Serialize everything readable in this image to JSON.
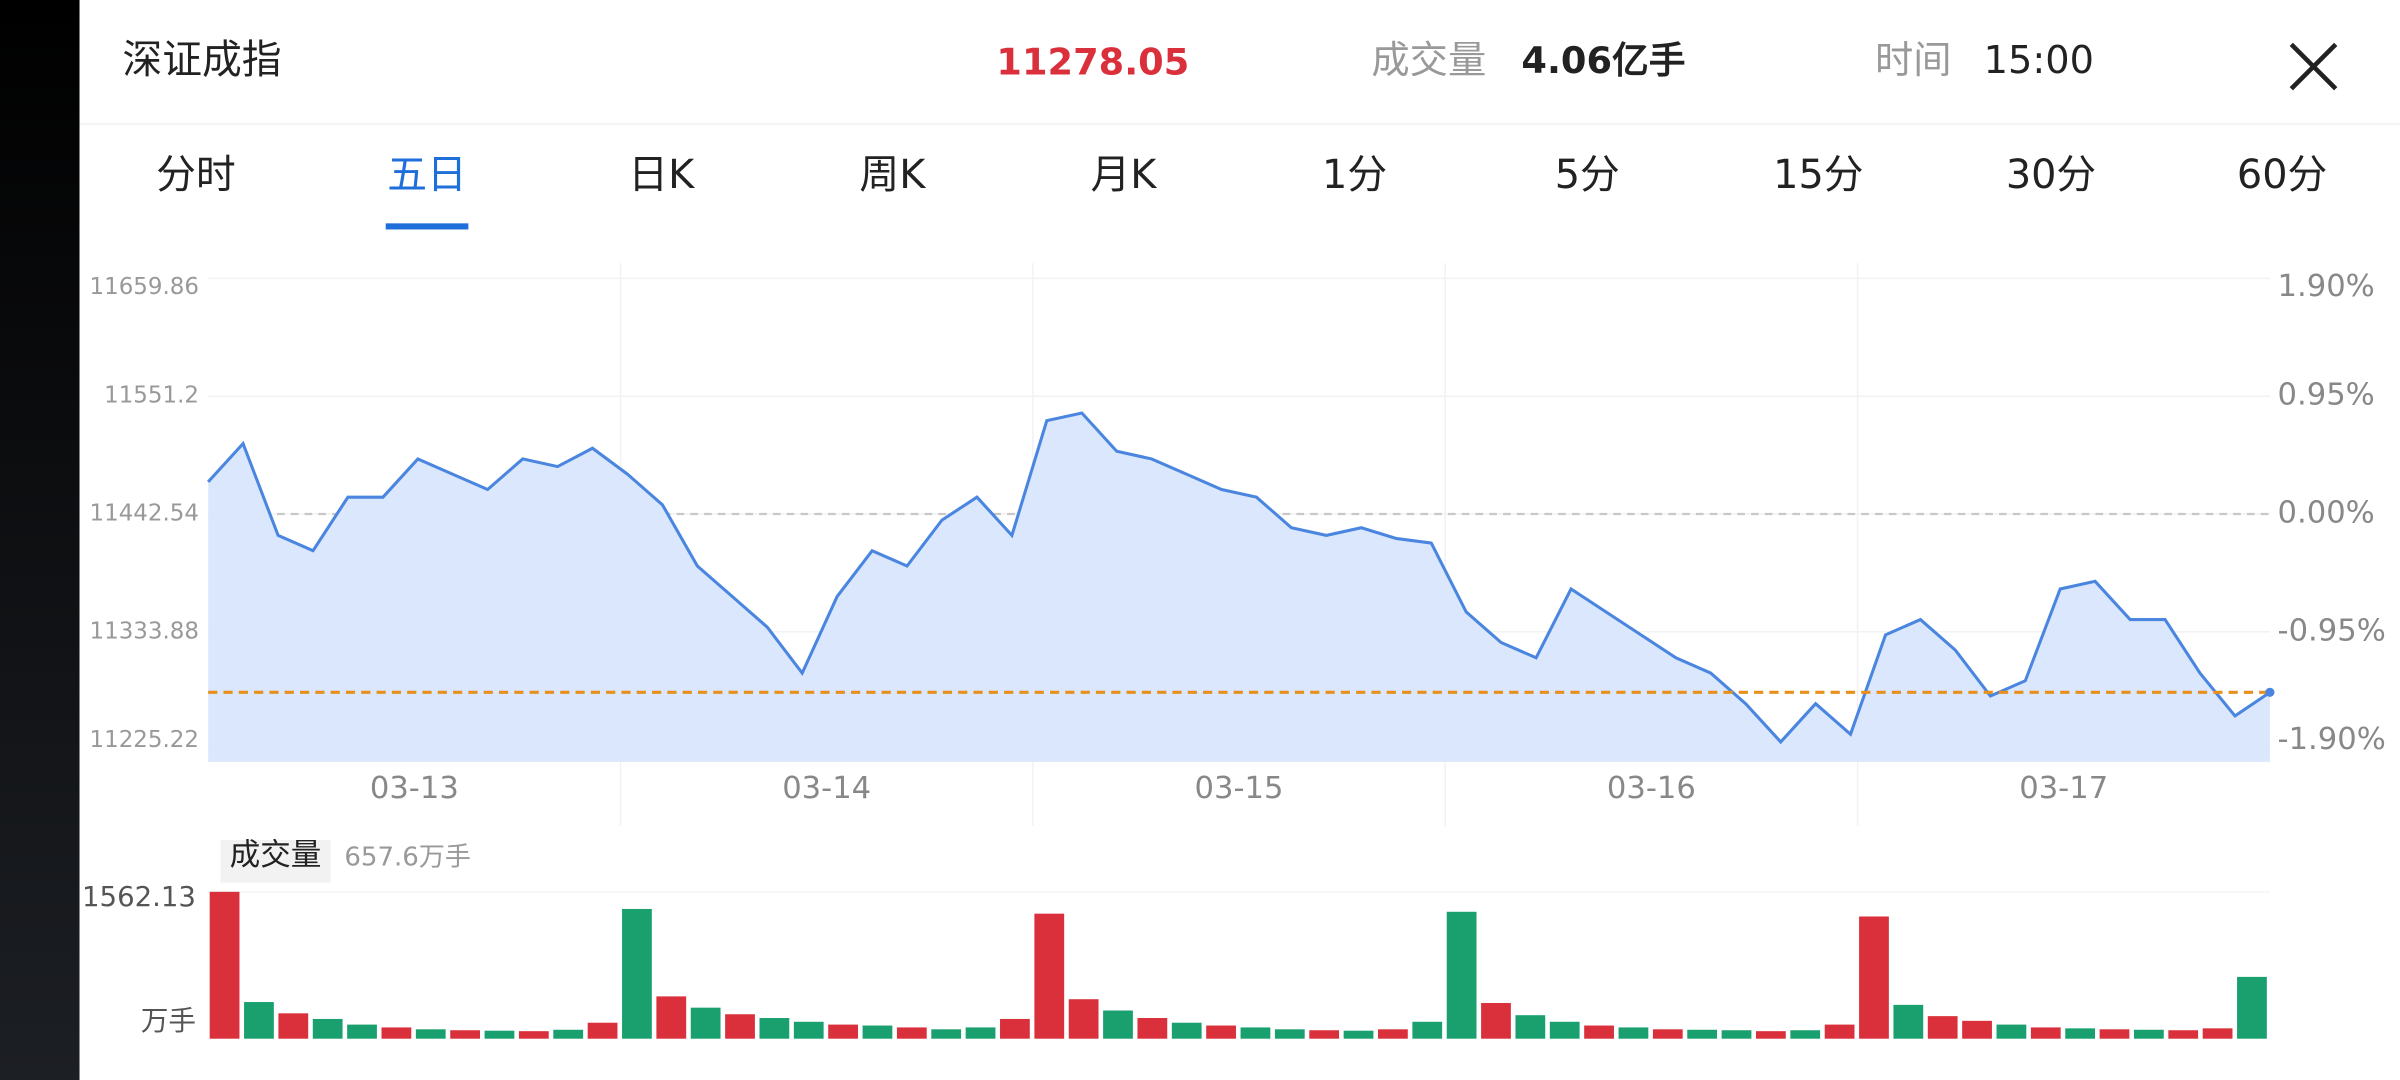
{
  "header": {
    "title": "深证成指",
    "price": "11278.05",
    "volume_label": "成交量",
    "volume": "4.06亿手",
    "time_label": "时间",
    "time": "15:00"
  },
  "tabs": {
    "items": [
      "分时",
      "五日",
      "日K",
      "周K",
      "月K",
      "1分",
      "5分",
      "15分",
      "30分",
      "60分"
    ],
    "active": 1
  },
  "chart_data": [
    {
      "type": "line",
      "days": [
        "03-13",
        "03-14",
        "03-15",
        "03-16",
        "03-17"
      ],
      "values": [
        11472.2,
        11507.5,
        11422.8,
        11408.7,
        11458.1,
        11458.1,
        11493.3,
        11479.2,
        11465.1,
        11493.3,
        11486.3,
        11503.2,
        11479.2,
        11451.0,
        11394.6,
        11366.3,
        11338.1,
        11295.8,
        11366.3,
        11408.7,
        11394.6,
        11436.9,
        11458.1,
        11422.8,
        11528.6,
        11535.7,
        11500.4,
        11493.3,
        11479.2,
        11465.1,
        11458.1,
        11429.8,
        11422.8,
        11429.8,
        11420.0,
        11415.7,
        11352.2,
        11324.0,
        11309.9,
        11373.4,
        11352.2,
        11331.0,
        11309.9,
        11295.8,
        11267.5,
        11232.3,
        11267.5,
        11239.3,
        11331.0,
        11345.2,
        11316.9,
        11274.6,
        11288.7,
        11373.4,
        11380.4,
        11345.2,
        11345.2,
        11295.8,
        11256.2,
        11278.05
      ],
      "color": "#4a86e0",
      "fill": "#dbe7fc",
      "ylim": [
        11225.22,
        11659.86
      ],
      "yticks": [
        11659.86,
        11551.2,
        11442.54,
        11333.88,
        11225.22
      ],
      "y2lim": [
        -1.9,
        1.9
      ],
      "y2ticks": [
        {
          "value": 1.9,
          "label": "1.90%"
        },
        {
          "value": 0.95,
          "label": "0.95%"
        },
        {
          "value": 0,
          "label": "0.00%"
        },
        {
          "value": -0.95,
          "label": "-0.95%"
        },
        {
          "value": -1.9,
          "label": "-1.90%"
        }
      ],
      "reference_line": {
        "value": 11278.05,
        "color": "#e8901c"
      },
      "grid": true
    },
    {
      "type": "bar",
      "title": "成交量",
      "current": "657.6万手",
      "unit": "万手",
      "values": [
        1562.13,
        390,
        270,
        210,
        150,
        120,
        100,
        90,
        85,
        80,
        95,
        170,
        1380,
        450,
        330,
        260,
        220,
        180,
        150,
        140,
        120,
        100,
        120,
        210,
        1330,
        420,
        300,
        220,
        170,
        140,
        120,
        100,
        90,
        85,
        100,
        180,
        1350,
        380,
        250,
        180,
        140,
        120,
        100,
        95,
        90,
        80,
        90,
        150,
        1300,
        360,
        240,
        190,
        150,
        120,
        110,
        100,
        95,
        90,
        110,
        657.6
      ],
      "colors": [
        "#d9303c",
        "#19a06e",
        "#d9303c",
        "#19a06e",
        "#19a06e",
        "#d9303c",
        "#19a06e",
        "#d9303c",
        "#19a06e",
        "#d9303c",
        "#19a06e",
        "#d9303c",
        "#19a06e",
        "#d9303c",
        "#19a06e",
        "#d9303c",
        "#19a06e",
        "#19a06e",
        "#d9303c",
        "#19a06e",
        "#d9303c",
        "#19a06e",
        "#19a06e",
        "#d9303c",
        "#d9303c",
        "#d9303c",
        "#19a06e",
        "#d9303c",
        "#19a06e",
        "#d9303c",
        "#19a06e",
        "#19a06e",
        "#d9303c",
        "#19a06e",
        "#d9303c",
        "#19a06e",
        "#19a06e",
        "#d9303c",
        "#19a06e",
        "#19a06e",
        "#d9303c",
        "#19a06e",
        "#d9303c",
        "#19a06e",
        "#19a06e",
        "#d9303c",
        "#19a06e",
        "#d9303c",
        "#d9303c",
        "#19a06e",
        "#d9303c",
        "#d9303c",
        "#19a06e",
        "#d9303c",
        "#19a06e",
        "#d9303c",
        "#19a06e",
        "#d9303c",
        "#d9303c",
        "#19a06e"
      ],
      "ylim": [
        0,
        1562.13
      ],
      "yticks": [
        1562.13
      ]
    }
  ]
}
